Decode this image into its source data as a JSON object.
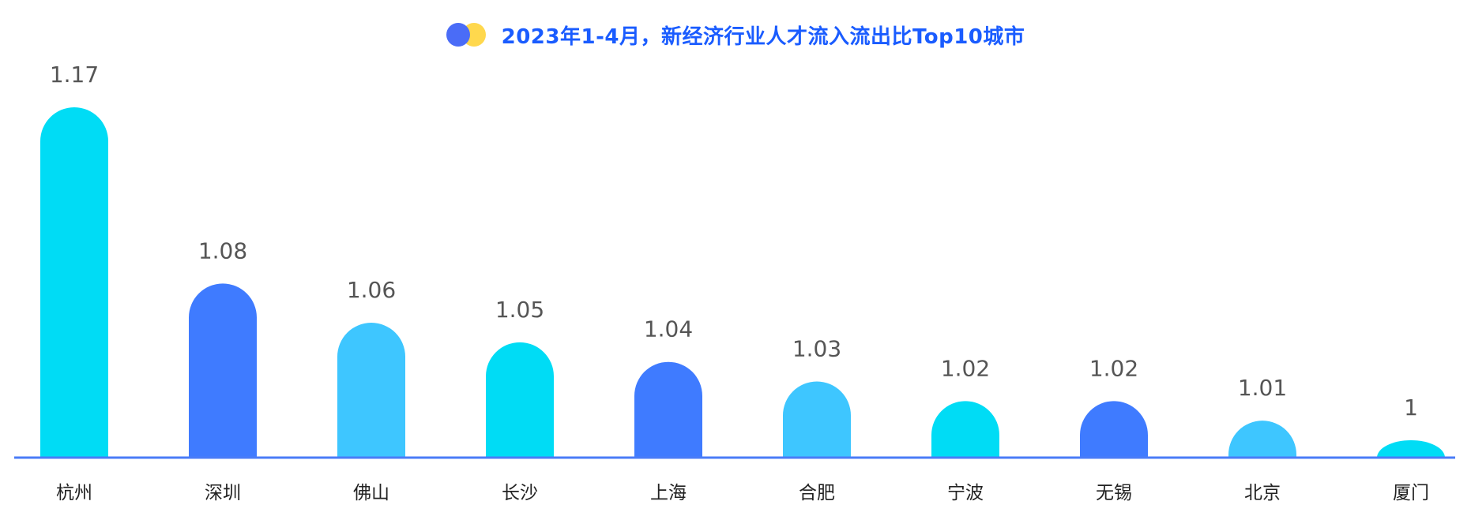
{
  "chart_data": {
    "type": "bar",
    "title": "2023年1-4月，新经济行业人才流入流出比Top10城市",
    "categories": [
      "杭州",
      "深圳",
      "佛山",
      "长沙",
      "上海",
      "合肥",
      "宁波",
      "无锡",
      "北京",
      "厦门"
    ],
    "values": [
      1.17,
      1.08,
      1.06,
      1.05,
      1.04,
      1.03,
      1.02,
      1.02,
      1.01,
      1
    ],
    "value_labels": [
      "1.17",
      "1.08",
      "1.06",
      "1.05",
      "1.04",
      "1.03",
      "1.02",
      "1.02",
      "1.01",
      "1"
    ],
    "bar_colors": [
      "#00dcf5",
      "#3f7bff",
      "#3ec6ff",
      "#00dcf5",
      "#3f7bff",
      "#3ec6ff",
      "#00dcf5",
      "#3f7bff",
      "#3ec6ff",
      "#00dcf5"
    ],
    "xlabel": "",
    "ylabel": "",
    "grid": false,
    "legend": "none"
  },
  "colors": {
    "title": "#1a5cff",
    "baseline": "#4a7cf7",
    "value_label": "#555555",
    "category_label": "#222222",
    "legend_dot_blue": "#4a6cf7",
    "legend_dot_yellow": "#ffd84d"
  }
}
